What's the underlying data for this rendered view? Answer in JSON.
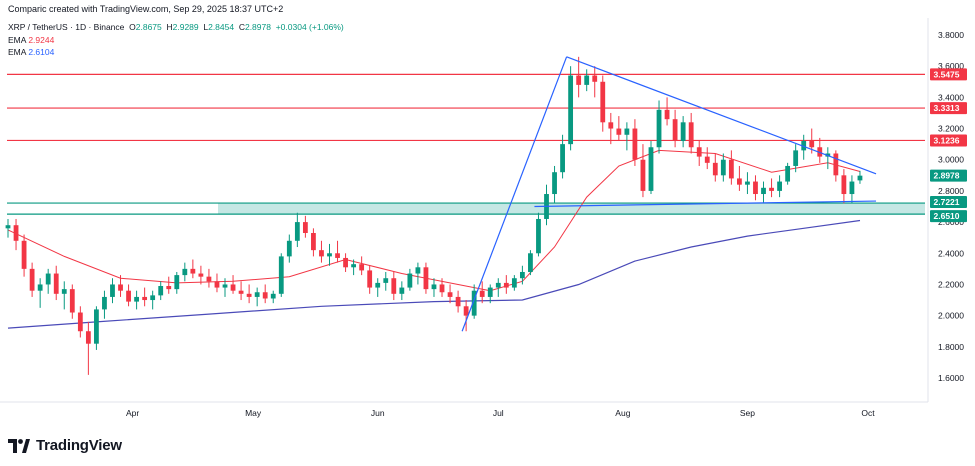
{
  "credit": "Comparic created with TradingView.com, Sep 29, 2025 18:37 UTC+2",
  "legend": {
    "symbol": "XRP / TetherUS · 1D · Binance",
    "open_key": "O",
    "open": "2.8675",
    "high_key": "H",
    "high": "2.9289",
    "low_key": "L",
    "low": "2.8454",
    "close_key": "C",
    "close": "2.8978",
    "change": "+0.0304 (+1.06%)",
    "ema_fast_label": "EMA",
    "ema_fast_value": "2.9244",
    "ema_slow_label": "EMA",
    "ema_slow_value": "2.6104"
  },
  "brand": {
    "text": "TradingView",
    "icon": "tradingview-logo-icon"
  },
  "colors": {
    "up": "#089981",
    "down": "#f23645",
    "ema_fast": "#f23645",
    "ema_slow": "#4a4ab8",
    "trendline": "#2962ff",
    "zone": "#b2dfdb",
    "resistance": "#f23645",
    "support": "#089981"
  },
  "chart_data": {
    "type": "candlestick",
    "symbol": "XRP / TetherUS",
    "interval": "1D",
    "exchange": "Binance",
    "ylim": [
      1.45,
      3.92
    ],
    "y_ticks": [
      "3.8000",
      "3.6000",
      "3.4000",
      "3.2000",
      "3.0000",
      "2.8000",
      "2.6000",
      "2.4000",
      "2.2000",
      "2.0000",
      "1.8000",
      "1.6000"
    ],
    "x_ticks": [
      "Apr",
      "May",
      "Jun",
      "Jul",
      "Aug",
      "Sep",
      "Oct"
    ],
    "last_price": 2.8978,
    "horizontal_levels": [
      {
        "value": 3.5475,
        "label": "3.5475",
        "kind": "resistance"
      },
      {
        "value": 3.3313,
        "label": "3.3313",
        "kind": "resistance"
      },
      {
        "value": 3.1236,
        "label": "3.1236",
        "kind": "resistance"
      },
      {
        "value": 2.7221,
        "label": "2.7221",
        "kind": "support"
      },
      {
        "value": 2.651,
        "label": "2.6510",
        "kind": "support"
      }
    ],
    "support_zone": [
      2.651,
      2.7221
    ],
    "trendlines": [
      {
        "from": [
          "2025-06-22",
          1.9
        ],
        "to": [
          "2025-07-18",
          3.66
        ]
      },
      {
        "from": [
          "2025-07-18",
          3.66
        ],
        "to": [
          "2025-10-03",
          2.91
        ]
      },
      {
        "from": [
          "2025-07-10",
          2.7
        ],
        "to": [
          "2025-10-03",
          2.735
        ]
      }
    ],
    "candles": [
      [
        "2025-03-01",
        2.56,
        2.62,
        2.5,
        2.58
      ],
      [
        "2025-03-03",
        2.58,
        2.62,
        2.42,
        2.48
      ],
      [
        "2025-03-05",
        2.48,
        2.52,
        2.25,
        2.3
      ],
      [
        "2025-03-07",
        2.3,
        2.34,
        2.12,
        2.16
      ],
      [
        "2025-03-09",
        2.16,
        2.24,
        2.05,
        2.2
      ],
      [
        "2025-03-11",
        2.2,
        2.3,
        2.14,
        2.27
      ],
      [
        "2025-03-13",
        2.27,
        2.32,
        2.1,
        2.14
      ],
      [
        "2025-03-15",
        2.14,
        2.22,
        2.04,
        2.17
      ],
      [
        "2025-03-17",
        2.17,
        2.2,
        1.98,
        2.02
      ],
      [
        "2025-03-19",
        2.02,
        2.06,
        1.86,
        1.9
      ],
      [
        "2025-03-21",
        1.9,
        1.96,
        1.62,
        1.82
      ],
      [
        "2025-03-23",
        1.82,
        2.06,
        1.78,
        2.04
      ],
      [
        "2025-03-25",
        2.04,
        2.16,
        1.98,
        2.12
      ],
      [
        "2025-03-27",
        2.12,
        2.24,
        2.08,
        2.2
      ],
      [
        "2025-03-29",
        2.2,
        2.26,
        2.12,
        2.16
      ],
      [
        "2025-03-31",
        2.16,
        2.2,
        2.06,
        2.09
      ],
      [
        "2025-04-02",
        2.09,
        2.16,
        2.04,
        2.12
      ],
      [
        "2025-04-04",
        2.12,
        2.18,
        2.06,
        2.1
      ],
      [
        "2025-04-06",
        2.1,
        2.16,
        2.04,
        2.13
      ],
      [
        "2025-04-08",
        2.13,
        2.22,
        2.1,
        2.19
      ],
      [
        "2025-04-10",
        2.19,
        2.25,
        2.14,
        2.17
      ],
      [
        "2025-04-12",
        2.17,
        2.28,
        2.14,
        2.26
      ],
      [
        "2025-04-14",
        2.26,
        2.34,
        2.22,
        2.3
      ],
      [
        "2025-04-16",
        2.3,
        2.36,
        2.24,
        2.27
      ],
      [
        "2025-04-18",
        2.27,
        2.32,
        2.2,
        2.25
      ],
      [
        "2025-04-20",
        2.25,
        2.3,
        2.18,
        2.22
      ],
      [
        "2025-04-22",
        2.22,
        2.27,
        2.15,
        2.18
      ],
      [
        "2025-04-24",
        2.18,
        2.24,
        2.12,
        2.2
      ],
      [
        "2025-04-26",
        2.2,
        2.26,
        2.14,
        2.16
      ],
      [
        "2025-04-28",
        2.16,
        2.22,
        2.1,
        2.14
      ],
      [
        "2025-04-30",
        2.14,
        2.2,
        2.08,
        2.12
      ],
      [
        "2025-05-02",
        2.12,
        2.18,
        2.06,
        2.15
      ],
      [
        "2025-05-04",
        2.15,
        2.2,
        2.08,
        2.11
      ],
      [
        "2025-05-06",
        2.11,
        2.16,
        2.08,
        2.14
      ],
      [
        "2025-05-08",
        2.14,
        2.4,
        2.12,
        2.38
      ],
      [
        "2025-05-10",
        2.38,
        2.52,
        2.34,
        2.48
      ],
      [
        "2025-05-12",
        2.48,
        2.66,
        2.44,
        2.6
      ],
      [
        "2025-05-14",
        2.6,
        2.64,
        2.5,
        2.53
      ],
      [
        "2025-05-16",
        2.53,
        2.56,
        2.38,
        2.42
      ],
      [
        "2025-05-18",
        2.42,
        2.48,
        2.34,
        2.38
      ],
      [
        "2025-05-20",
        2.38,
        2.46,
        2.32,
        2.4
      ],
      [
        "2025-05-22",
        2.4,
        2.48,
        2.34,
        2.37
      ],
      [
        "2025-05-24",
        2.37,
        2.4,
        2.28,
        2.31
      ],
      [
        "2025-05-26",
        2.31,
        2.36,
        2.26,
        2.33
      ],
      [
        "2025-05-28",
        2.33,
        2.38,
        2.26,
        2.29
      ],
      [
        "2025-05-30",
        2.29,
        2.32,
        2.14,
        2.18
      ],
      [
        "2025-06-01",
        2.18,
        2.24,
        2.12,
        2.21
      ],
      [
        "2025-06-03",
        2.21,
        2.28,
        2.16,
        2.24
      ],
      [
        "2025-06-05",
        2.24,
        2.28,
        2.1,
        2.14
      ],
      [
        "2025-06-07",
        2.14,
        2.22,
        2.1,
        2.18
      ],
      [
        "2025-06-09",
        2.18,
        2.3,
        2.16,
        2.27
      ],
      [
        "2025-06-11",
        2.27,
        2.34,
        2.2,
        2.31
      ],
      [
        "2025-06-13",
        2.31,
        2.34,
        2.14,
        2.17
      ],
      [
        "2025-06-15",
        2.17,
        2.24,
        2.12,
        2.2
      ],
      [
        "2025-06-17",
        2.2,
        2.24,
        2.12,
        2.15
      ],
      [
        "2025-06-19",
        2.15,
        2.2,
        2.08,
        2.12
      ],
      [
        "2025-06-21",
        2.12,
        2.16,
        2.02,
        2.06
      ],
      [
        "2025-06-23",
        2.06,
        2.1,
        1.9,
        2.0
      ],
      [
        "2025-06-25",
        2.0,
        2.2,
        1.98,
        2.16
      ],
      [
        "2025-06-27",
        2.16,
        2.22,
        2.08,
        2.12
      ],
      [
        "2025-06-29",
        2.12,
        2.2,
        2.08,
        2.18
      ],
      [
        "2025-07-01",
        2.18,
        2.24,
        2.12,
        2.21
      ],
      [
        "2025-07-03",
        2.21,
        2.26,
        2.14,
        2.18
      ],
      [
        "2025-07-05",
        2.18,
        2.26,
        2.16,
        2.24
      ],
      [
        "2025-07-07",
        2.24,
        2.32,
        2.2,
        2.28
      ],
      [
        "2025-07-09",
        2.28,
        2.42,
        2.26,
        2.4
      ],
      [
        "2025-07-11",
        2.4,
        2.66,
        2.38,
        2.62
      ],
      [
        "2025-07-13",
        2.62,
        2.84,
        2.58,
        2.78
      ],
      [
        "2025-07-15",
        2.78,
        2.96,
        2.72,
        2.92
      ],
      [
        "2025-07-17",
        2.92,
        3.16,
        2.88,
        3.1
      ],
      [
        "2025-07-19",
        3.1,
        3.6,
        3.06,
        3.54
      ],
      [
        "2025-07-21",
        3.54,
        3.66,
        3.4,
        3.48
      ],
      [
        "2025-07-23",
        3.48,
        3.58,
        3.44,
        3.54
      ],
      [
        "2025-07-25",
        3.54,
        3.6,
        3.4,
        3.5
      ],
      [
        "2025-07-27",
        3.5,
        3.54,
        3.18,
        3.24
      ],
      [
        "2025-07-29",
        3.24,
        3.3,
        3.1,
        3.2
      ],
      [
        "2025-07-31",
        3.2,
        3.28,
        3.12,
        3.16
      ],
      [
        "2025-08-02",
        3.16,
        3.24,
        3.06,
        3.2
      ],
      [
        "2025-08-04",
        3.2,
        3.26,
        2.96,
        3.0
      ],
      [
        "2025-08-06",
        3.0,
        3.1,
        2.76,
        2.8
      ],
      [
        "2025-08-08",
        2.8,
        3.12,
        2.78,
        3.08
      ],
      [
        "2025-08-10",
        3.08,
        3.38,
        3.04,
        3.32
      ],
      [
        "2025-08-12",
        3.32,
        3.4,
        3.22,
        3.26
      ],
      [
        "2025-08-14",
        3.26,
        3.32,
        3.08,
        3.12
      ],
      [
        "2025-08-16",
        3.12,
        3.28,
        3.08,
        3.24
      ],
      [
        "2025-08-18",
        3.24,
        3.3,
        3.04,
        3.08
      ],
      [
        "2025-08-20",
        3.08,
        3.12,
        2.96,
        3.02
      ],
      [
        "2025-08-22",
        3.02,
        3.08,
        2.94,
        2.98
      ],
      [
        "2025-08-24",
        2.98,
        3.04,
        2.86,
        2.9
      ],
      [
        "2025-08-26",
        2.9,
        3.04,
        2.86,
        3.0
      ],
      [
        "2025-08-28",
        3.0,
        3.06,
        2.84,
        2.88
      ],
      [
        "2025-08-30",
        2.88,
        2.96,
        2.8,
        2.84
      ],
      [
        "2025-09-01",
        2.84,
        2.92,
        2.78,
        2.86
      ],
      [
        "2025-09-03",
        2.86,
        2.9,
        2.74,
        2.78
      ],
      [
        "2025-09-05",
        2.78,
        2.86,
        2.72,
        2.82
      ],
      [
        "2025-09-07",
        2.82,
        2.88,
        2.76,
        2.8
      ],
      [
        "2025-09-09",
        2.8,
        2.9,
        2.76,
        2.86
      ],
      [
        "2025-09-11",
        2.86,
        2.98,
        2.84,
        2.96
      ],
      [
        "2025-09-13",
        2.96,
        3.1,
        2.92,
        3.06
      ],
      [
        "2025-09-15",
        3.06,
        3.16,
        3.0,
        3.12
      ],
      [
        "2025-09-17",
        3.12,
        3.2,
        3.04,
        3.08
      ],
      [
        "2025-09-19",
        3.08,
        3.14,
        2.98,
        3.02
      ],
      [
        "2025-09-21",
        3.02,
        3.08,
        2.94,
        3.04
      ],
      [
        "2025-09-23",
        3.04,
        3.06,
        2.86,
        2.9
      ],
      [
        "2025-09-25",
        2.9,
        2.94,
        2.72,
        2.78
      ],
      [
        "2025-09-27",
        2.78,
        2.9,
        2.72,
        2.86
      ],
      [
        "2025-09-29",
        2.8675,
        2.9289,
        2.8454,
        2.8978
      ]
    ],
    "ema_fast": [
      [
        "2025-03-01",
        2.55
      ],
      [
        "2025-03-15",
        2.38
      ],
      [
        "2025-03-29",
        2.24
      ],
      [
        "2025-04-12",
        2.21
      ],
      [
        "2025-04-26",
        2.22
      ],
      [
        "2025-05-10",
        2.25
      ],
      [
        "2025-05-24",
        2.36
      ],
      [
        "2025-06-07",
        2.27
      ],
      [
        "2025-06-21",
        2.2
      ],
      [
        "2025-06-29",
        2.16
      ],
      [
        "2025-07-07",
        2.22
      ],
      [
        "2025-07-15",
        2.44
      ],
      [
        "2025-07-23",
        2.76
      ],
      [
        "2025-07-31",
        2.96
      ],
      [
        "2025-08-10",
        3.06
      ],
      [
        "2025-08-24",
        3.04
      ],
      [
        "2025-09-07",
        2.92
      ],
      [
        "2025-09-21",
        2.98
      ],
      [
        "2025-09-29",
        2.9244
      ]
    ],
    "ema_slow": [
      [
        "2025-03-01",
        1.92
      ],
      [
        "2025-03-23",
        1.96
      ],
      [
        "2025-04-20",
        2.01
      ],
      [
        "2025-05-18",
        2.06
      ],
      [
        "2025-06-15",
        2.09
      ],
      [
        "2025-07-07",
        2.1
      ],
      [
        "2025-07-21",
        2.2
      ],
      [
        "2025-08-04",
        2.35
      ],
      [
        "2025-08-18",
        2.44
      ],
      [
        "2025-09-01",
        2.51
      ],
      [
        "2025-09-15",
        2.56
      ],
      [
        "2025-09-29",
        2.6104
      ]
    ]
  }
}
